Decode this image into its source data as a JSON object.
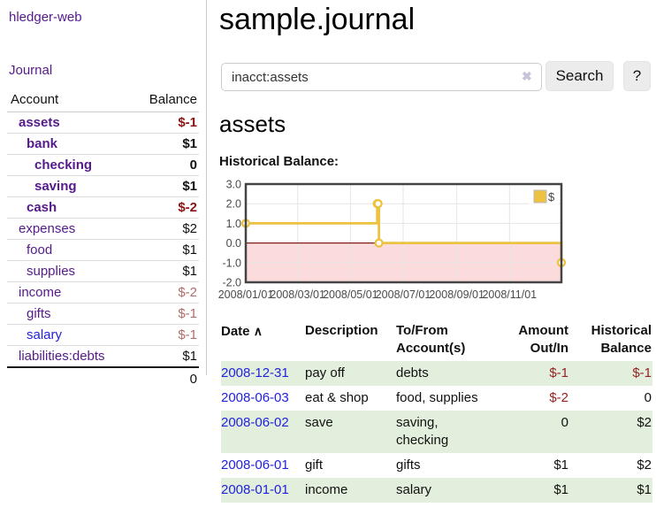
{
  "app": {
    "title": "hledger-web"
  },
  "sidebar": {
    "journal_link": "Journal",
    "headers": {
      "account": "Account",
      "balance": "Balance"
    },
    "accounts": [
      {
        "name": "assets",
        "depth": 1,
        "bold": true,
        "balance": "$-1"
      },
      {
        "name": "bank",
        "depth": 2,
        "bold": true,
        "balance": "$1"
      },
      {
        "name": "checking",
        "depth": 3,
        "bold": true,
        "balance": "0"
      },
      {
        "name": "saving",
        "depth": 3,
        "bold": true,
        "balance": "$1"
      },
      {
        "name": "cash",
        "depth": 2,
        "bold": true,
        "balance": "$-2"
      },
      {
        "name": "expenses",
        "depth": 1,
        "bold": false,
        "balance": "$2"
      },
      {
        "name": "food",
        "depth": 2,
        "bold": false,
        "balance": "$1"
      },
      {
        "name": "supplies",
        "depth": 2,
        "bold": false,
        "balance": "$1"
      },
      {
        "name": "income",
        "depth": 1,
        "bold": false,
        "balance": "$-2"
      },
      {
        "name": "gifts",
        "depth": 2,
        "bold": false,
        "balance": "$-1"
      },
      {
        "name": "salary",
        "depth": 2,
        "bold": false,
        "balance": "$-1",
        "unvisited": true
      },
      {
        "name": "liabilities:debts",
        "depth": 1,
        "bold": false,
        "balance": "$1",
        "last": true
      }
    ],
    "total": "0"
  },
  "header": {
    "title": "sample.journal"
  },
  "search": {
    "value": "inacct:assets",
    "clear_icon": "✖",
    "button_label": "Search",
    "help_label": "?"
  },
  "account_page": {
    "title": "assets",
    "chart_label": "Historical Balance:"
  },
  "chart_data": {
    "type": "line",
    "step": true,
    "title": "Historical Balance",
    "series": [
      {
        "name": "$",
        "color": "#EDC240",
        "points": [
          [
            "2008-01-01",
            1
          ],
          [
            "2008-06-01",
            2
          ],
          [
            "2008-06-02",
            2
          ],
          [
            "2008-06-03",
            0
          ],
          [
            "2008-12-31",
            -1
          ]
        ]
      }
    ],
    "x_range": [
      "2008-01-01",
      "2008-12-31"
    ],
    "ylim": [
      -2,
      3
    ],
    "yticks": [
      3,
      2,
      1,
      0,
      -1,
      -2
    ],
    "xtick_labels": [
      "2008/01/01",
      "2008/03/01",
      "2008/05/01",
      "2008/07/01",
      "2008/09/01",
      "2008/11/01"
    ],
    "grid": true,
    "legend": {
      "position": "top-right",
      "label": "$"
    },
    "negative_region_color": "#fbdbdb",
    "zero_line_color": "#7c1b1b",
    "border_color": "#444444",
    "gridline_color": "#e6e6e6"
  },
  "register": {
    "sort_icon": "∧",
    "columns": [
      {
        "label": "Date"
      },
      {
        "label": "Description"
      },
      {
        "label": "To/From Account(s)"
      },
      {
        "label": "Amount Out/In"
      },
      {
        "label": "Historical Balance"
      }
    ],
    "rows": [
      {
        "date": "2008-12-31",
        "description": "pay off",
        "accounts": "debts",
        "amount": "$-1",
        "balance": "$-1"
      },
      {
        "date": "2008-06-03",
        "description": "eat & shop",
        "accounts": "food, supplies",
        "amount": "$-2",
        "balance": "0"
      },
      {
        "date": "2008-06-02",
        "description": "save",
        "accounts": "saving, checking",
        "amount": "0",
        "balance": "$2"
      },
      {
        "date": "2008-06-01",
        "description": "gift",
        "accounts": "gifts",
        "amount": "$1",
        "balance": "$2"
      },
      {
        "date": "2008-01-01",
        "description": "income",
        "accounts": "salary",
        "amount": "$1",
        "balance": "$1"
      }
    ]
  },
  "colors": {
    "link_purple": "#551a8b",
    "link_blue": "#2222dd",
    "negative_strong": "#8b1414",
    "negative_muted": "#b16d6d",
    "negative_register": "#942222",
    "row_green": "#e2efdc",
    "series_gold": "#EDC240"
  }
}
